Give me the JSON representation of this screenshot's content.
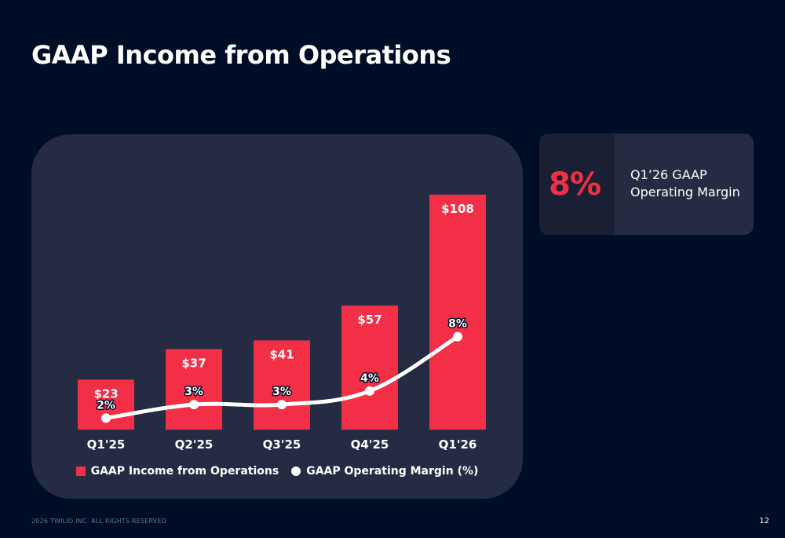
{
  "slide": {
    "title": "GAAP Income from Operations",
    "footer": "2026 TWILIO INC. ALL RIGHTS RESERVED",
    "page_number": "12"
  },
  "kpi": {
    "value": "8%",
    "line1": "Q1’26 GAAP",
    "line2": "Operating Margin"
  },
  "colors": {
    "background": "#000d26",
    "panel": "#252b42",
    "bar": "#f22f46",
    "line": "#ffffff"
  },
  "chart_data": {
    "type": "bar",
    "categories": [
      "Q1'25",
      "Q2'25",
      "Q3'25",
      "Q4'25",
      "Q1'26"
    ],
    "series": [
      {
        "name": "GAAP Income from Operations",
        "type": "bar",
        "values": [
          23,
          37,
          41,
          57,
          108
        ],
        "labels": [
          "$23",
          "$37",
          "$41",
          "$57",
          "$108"
        ]
      },
      {
        "name": "GAAP Operating Margin (%)",
        "type": "line",
        "values": [
          2,
          3,
          3,
          4,
          8
        ],
        "labels": [
          "2%",
          "3%",
          "3%",
          "4%",
          "8%"
        ]
      }
    ],
    "legend": "bottom-center",
    "grid": false
  }
}
